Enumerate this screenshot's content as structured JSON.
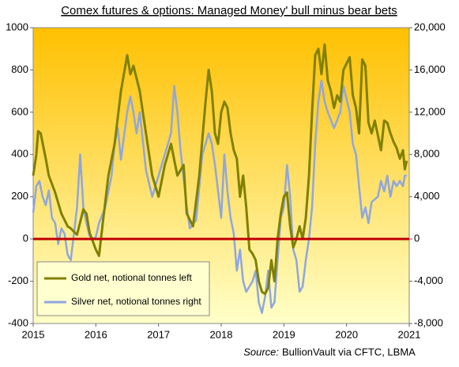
{
  "chart_data": {
    "type": "line",
    "title": "Comex futures  & options: Managed Money' bull minus bear bets",
    "source_label": "Source:",
    "source": "BullionVault via CFTC, LBMA",
    "xlim": [
      2015,
      2021
    ],
    "xticks": [
      2015,
      2016,
      2017,
      2018,
      2019,
      2020,
      2021
    ],
    "ylim": [
      -400,
      1000
    ],
    "yticks": [
      -400,
      -200,
      0,
      200,
      400,
      600,
      800,
      1000
    ],
    "y2lim": [
      -8000,
      20000
    ],
    "y2ticks": [
      {
        "value": -8000,
        "label": "-8,000"
      },
      {
        "value": -4000,
        "label": "-4,000"
      },
      0,
      {
        "value": 4000,
        "label": "4,000"
      },
      {
        "value": 8000,
        "label": "8,000"
      },
      {
        "value": 12000,
        "label": "12,000"
      },
      {
        "value": 16000,
        "label": "16,000"
      },
      {
        "value": 20000,
        "label": "20,000"
      }
    ],
    "baseline_color": "#c00000",
    "legend": "lower left",
    "series": [
      {
        "name": "Gold net, notional tonnes left",
        "color": "#808000",
        "x": [
          2015.0,
          2015.05,
          2015.08,
          2015.12,
          2015.2,
          2015.25,
          2015.35,
          2015.45,
          2015.55,
          2015.6,
          2015.7,
          2015.8,
          2015.85,
          2015.9,
          2016.0,
          2016.05,
          2016.1,
          2016.2,
          2016.3,
          2016.4,
          2016.5,
          2016.55,
          2016.6,
          2016.7,
          2016.75,
          2016.8,
          2016.9,
          2017.0,
          2017.1,
          2017.2,
          2017.3,
          2017.4,
          2017.45,
          2017.55,
          2017.65,
          2017.75,
          2017.8,
          2017.85,
          2017.9,
          2017.95,
          2018.0,
          2018.05,
          2018.1,
          2018.15,
          2018.2,
          2018.25,
          2018.3,
          2018.35,
          2018.4,
          2018.45,
          2018.5,
          2018.55,
          2018.6,
          2018.65,
          2018.7,
          2018.75,
          2018.8,
          2018.85,
          2018.9,
          2018.95,
          2019.0,
          2019.05,
          2019.1,
          2019.15,
          2019.2,
          2019.25,
          2019.3,
          2019.35,
          2019.4,
          2019.45,
          2019.5,
          2019.55,
          2019.6,
          2019.65,
          2019.7,
          2019.75,
          2019.8,
          2019.85,
          2019.9,
          2019.95,
          2020.05,
          2020.1,
          2020.15,
          2020.2,
          2020.25,
          2020.3,
          2020.35,
          2020.4,
          2020.45,
          2020.55,
          2020.6,
          2020.65,
          2020.7,
          2020.75,
          2020.8,
          2020.85,
          2020.9,
          2020.93,
          2020.96
        ],
        "values": [
          300,
          400,
          510,
          500,
          380,
          300,
          220,
          120,
          60,
          50,
          20,
          140,
          120,
          30,
          -50,
          -80,
          50,
          300,
          450,
          700,
          870,
          780,
          820,
          700,
          600,
          500,
          300,
          200,
          350,
          450,
          300,
          350,
          120,
          60,
          300,
          650,
          800,
          700,
          500,
          450,
          600,
          650,
          620,
          500,
          420,
          380,
          200,
          300,
          150,
          -50,
          -70,
          -100,
          -200,
          -250,
          -260,
          -230,
          -100,
          -200,
          0,
          120,
          200,
          220,
          60,
          -40,
          0,
          60,
          0,
          100,
          300,
          600,
          870,
          900,
          780,
          920,
          750,
          700,
          620,
          680,
          650,
          800,
          860,
          680,
          620,
          500,
          850,
          820,
          550,
          500,
          560,
          420,
          560,
          550,
          500,
          460,
          430,
          380,
          420,
          330,
          370
        ]
      },
      {
        "name": "Silver net, notional tonnes right",
        "color": "#8fa6e0",
        "axis": "y2",
        "x": [
          2015.0,
          2015.05,
          2015.1,
          2015.15,
          2015.2,
          2015.25,
          2015.3,
          2015.35,
          2015.4,
          2015.45,
          2015.5,
          2015.55,
          2015.6,
          2015.7,
          2015.75,
          2015.8,
          2015.85,
          2015.9,
          2015.95,
          2016.0,
          2016.05,
          2016.15,
          2016.25,
          2016.3,
          2016.35,
          2016.4,
          2016.5,
          2016.55,
          2016.6,
          2016.65,
          2016.7,
          2016.8,
          2016.9,
          2017.0,
          2017.1,
          2017.2,
          2017.25,
          2017.3,
          2017.35,
          2017.45,
          2017.5,
          2017.6,
          2017.7,
          2017.8,
          2017.85,
          2017.9,
          2018.0,
          2018.05,
          2018.1,
          2018.15,
          2018.2,
          2018.25,
          2018.3,
          2018.35,
          2018.4,
          2018.5,
          2018.55,
          2018.6,
          2018.65,
          2018.7,
          2018.75,
          2018.8,
          2018.85,
          2018.9,
          2018.95,
          2019.0,
          2019.05,
          2019.1,
          2019.15,
          2019.2,
          2019.25,
          2019.3,
          2019.35,
          2019.4,
          2019.45,
          2019.5,
          2019.55,
          2019.6,
          2019.65,
          2019.7,
          2019.8,
          2019.9,
          2019.95,
          2020.05,
          2020.1,
          2020.15,
          2020.2,
          2020.25,
          2020.3,
          2020.35,
          2020.4,
          2020.5,
          2020.55,
          2020.6,
          2020.65,
          2020.7,
          2020.75,
          2020.8,
          2020.85,
          2020.9,
          2020.93,
          2020.96
        ],
        "values": [
          2500,
          5000,
          5500,
          4000,
          3200,
          4600,
          2000,
          1500,
          -500,
          1000,
          500,
          -1500,
          -2000,
          3000,
          8000,
          3000,
          1500,
          300,
          0,
          200,
          1500,
          3000,
          6000,
          9000,
          10500,
          7500,
          12000,
          13500,
          12000,
          10000,
          12000,
          6500,
          4000,
          6000,
          8000,
          10000,
          14500,
          12000,
          8500,
          3000,
          1000,
          1800,
          8000,
          10000,
          9000,
          7000,
          2000,
          8000,
          4500,
          2000,
          500,
          -3000,
          -1000,
          -4000,
          -5000,
          -4000,
          -3000,
          -6000,
          -7000,
          -5500,
          -3000,
          -6500,
          -6000,
          -2000,
          2000,
          3000,
          7000,
          4000,
          -1000,
          -2000,
          -5000,
          -4500,
          -2000,
          0,
          3000,
          9000,
          13000,
          15000,
          13000,
          12000,
          10500,
          12000,
          14500,
          12000,
          9000,
          8000,
          5000,
          2000,
          3000,
          1500,
          3500,
          4000,
          5500,
          4500,
          6000,
          4000,
          5500,
          5000,
          5500,
          5000,
          6000,
          6000
        ]
      }
    ]
  }
}
